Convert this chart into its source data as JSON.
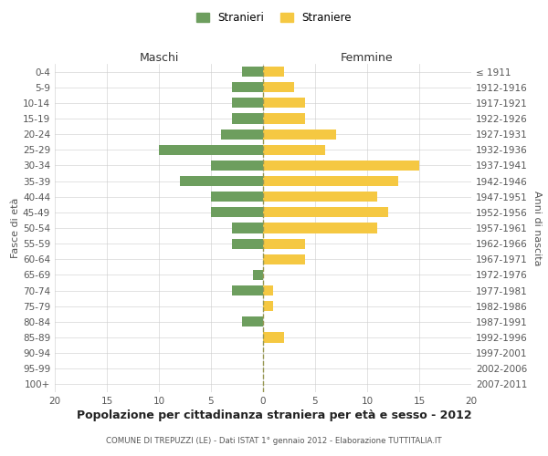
{
  "age_groups": [
    "0-4",
    "5-9",
    "10-14",
    "15-19",
    "20-24",
    "25-29",
    "30-34",
    "35-39",
    "40-44",
    "45-49",
    "50-54",
    "55-59",
    "60-64",
    "65-69",
    "70-74",
    "75-79",
    "80-84",
    "85-89",
    "90-94",
    "95-99",
    "100+"
  ],
  "birth_years": [
    "2007-2011",
    "2002-2006",
    "1997-2001",
    "1992-1996",
    "1987-1991",
    "1982-1986",
    "1977-1981",
    "1972-1976",
    "1967-1971",
    "1962-1966",
    "1957-1961",
    "1952-1956",
    "1947-1951",
    "1942-1946",
    "1937-1941",
    "1932-1936",
    "1927-1931",
    "1922-1926",
    "1917-1921",
    "1912-1916",
    "≤ 1911"
  ],
  "males": [
    2,
    3,
    3,
    3,
    4,
    10,
    5,
    8,
    5,
    5,
    3,
    3,
    0,
    1,
    3,
    0,
    2,
    0,
    0,
    0,
    0
  ],
  "females": [
    2,
    3,
    4,
    4,
    7,
    6,
    15,
    13,
    11,
    12,
    11,
    4,
    4,
    0,
    1,
    1,
    0,
    2,
    0,
    0,
    0
  ],
  "male_color": "#6d9e5e",
  "female_color": "#f5c842",
  "title": "Popolazione per cittadinanza straniera per età e sesso - 2012",
  "subtitle": "COMUNE DI TREPUZZI (LE) - Dati ISTAT 1° gennaio 2012 - Elaborazione TUTTITALIA.IT",
  "ylabel_left": "Fasce di età",
  "ylabel_right": "Anni di nascita",
  "xlabel_left": "Maschi",
  "xlabel_right": "Femmine",
  "legend_stranieri": "Stranieri",
  "legend_straniere": "Straniere",
  "xlim": 20,
  "background_color": "#ffffff",
  "grid_color": "#cccccc"
}
